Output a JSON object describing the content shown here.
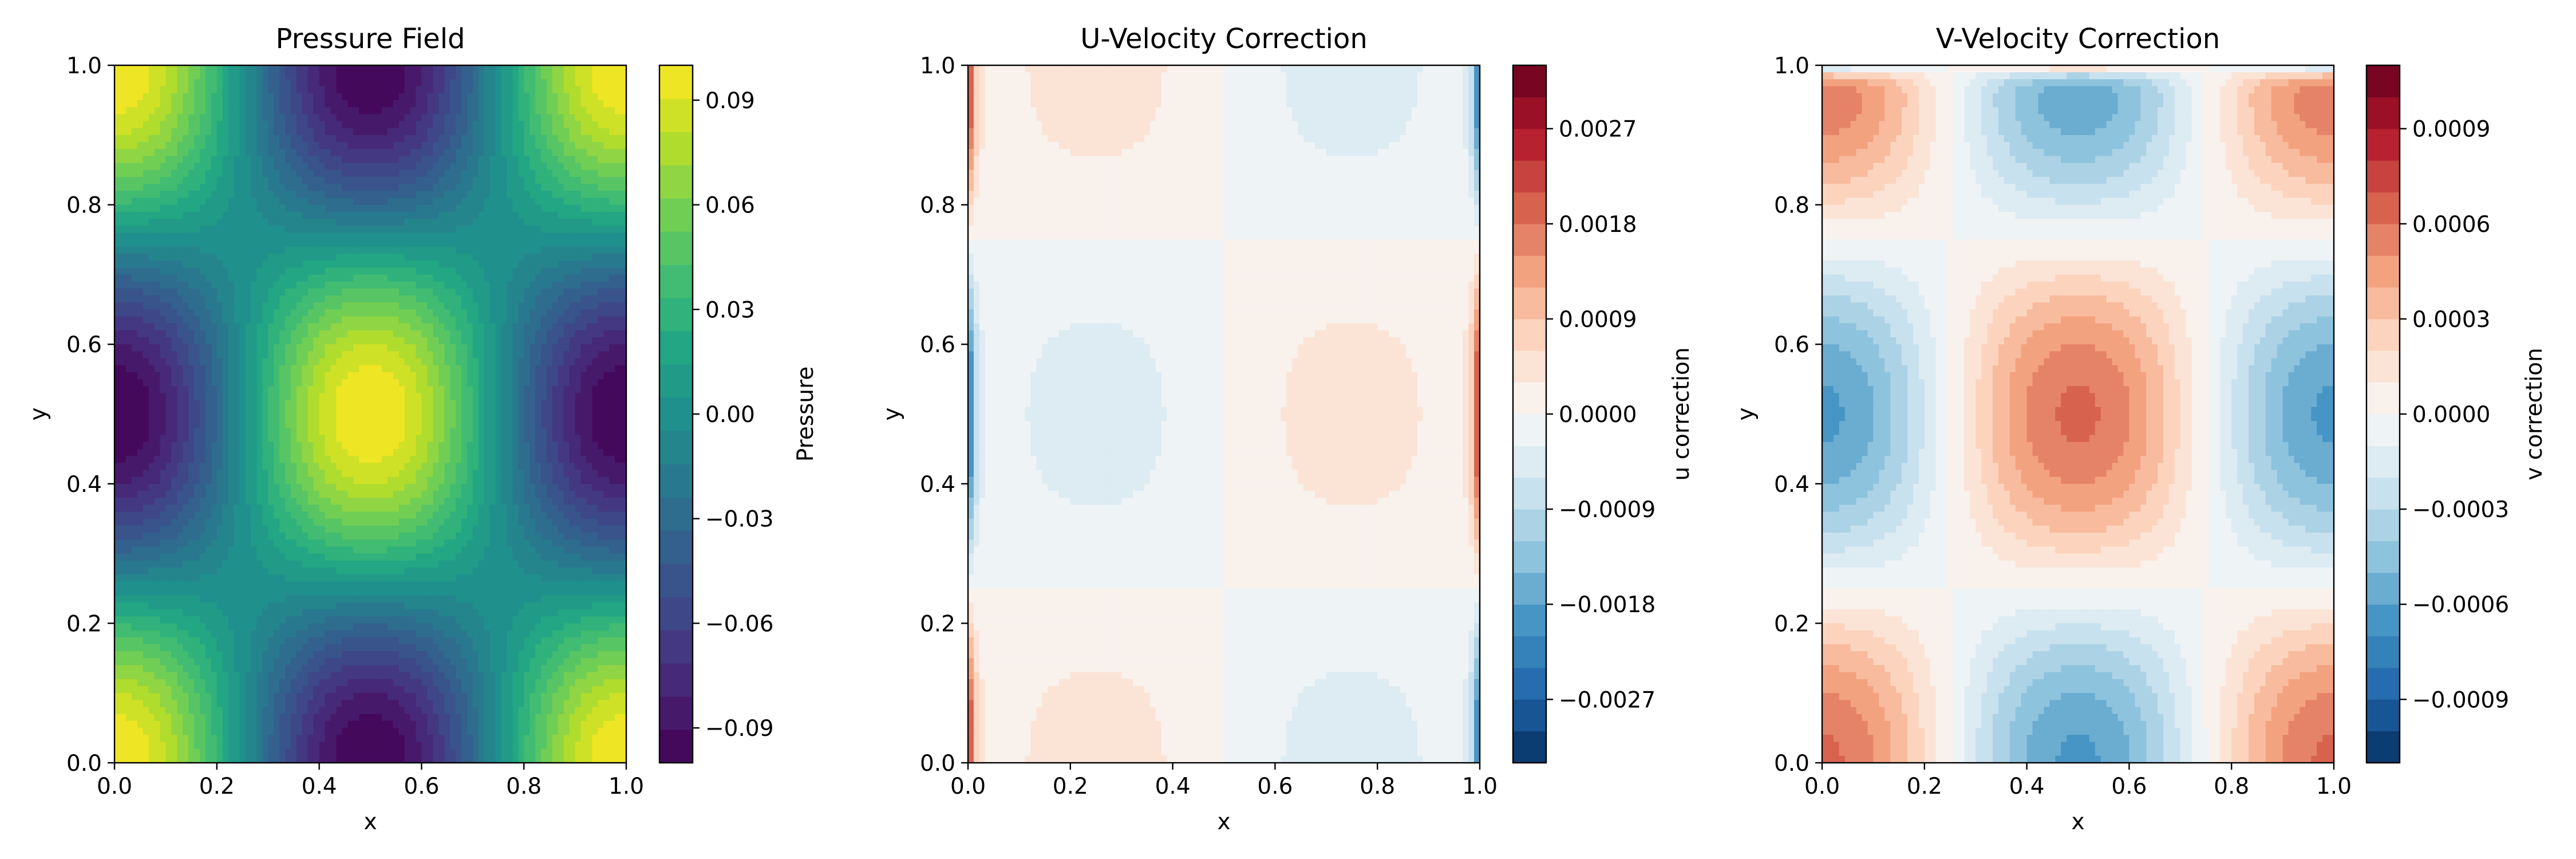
{
  "chart_data": [
    {
      "type": "heatmap",
      "title": "Pressure Field",
      "xlabel": "x",
      "ylabel": "y",
      "xlim": [
        0.0,
        1.0
      ],
      "ylim": [
        0.0,
        1.0
      ],
      "x_ticks": [
        "0.0",
        "0.2",
        "0.4",
        "0.6",
        "0.8",
        "1.0"
      ],
      "y_ticks": [
        "0.0",
        "0.2",
        "0.4",
        "0.6",
        "0.8",
        "1.0"
      ],
      "colormap": "viridis",
      "field": "p = 0.1 * cos(2*pi*x) * cos(2*pi*y)",
      "colorbar": {
        "label": "Pressure",
        "range": [
          -0.1,
          0.1
        ],
        "levels": 21,
        "ticks": [
          {
            "value": 0.09,
            "label": "0.09"
          },
          {
            "value": 0.06,
            "label": "0.06"
          },
          {
            "value": 0.03,
            "label": "0.03"
          },
          {
            "value": 0.0,
            "label": "0.00"
          },
          {
            "value": -0.03,
            "label": "−0.03"
          },
          {
            "value": -0.06,
            "label": "−0.06"
          },
          {
            "value": -0.09,
            "label": "−0.09"
          }
        ]
      }
    },
    {
      "type": "heatmap",
      "title": "U-Velocity Correction",
      "xlabel": "x",
      "ylabel": "y",
      "xlim": [
        0.0,
        1.0
      ],
      "ylim": [
        0.0,
        1.0
      ],
      "x_ticks": [
        "0.0",
        "0.2",
        "0.4",
        "0.6",
        "0.8",
        "1.0"
      ],
      "y_ticks": [
        "0.0",
        "0.2",
        "0.4",
        "0.6",
        "0.8",
        "1.0"
      ],
      "colormap": "RdBu_r",
      "field": "u' proportional to sin(2*pi*x) * cos(2*pi*y), with strong thin bands at x=0 and x=1",
      "colorbar": {
        "label": "u correction",
        "range": [
          -0.0033,
          0.0033
        ],
        "levels": 22,
        "ticks": [
          {
            "value": 0.0027,
            "label": "0.0027"
          },
          {
            "value": 0.0018,
            "label": "0.0018"
          },
          {
            "value": 0.0009,
            "label": "0.0009"
          },
          {
            "value": 0.0,
            "label": "0.0000"
          },
          {
            "value": -0.0009,
            "label": "−0.0009"
          },
          {
            "value": -0.0018,
            "label": "−0.0018"
          },
          {
            "value": -0.0027,
            "label": "−0.0027"
          }
        ]
      }
    },
    {
      "type": "heatmap",
      "title": "V-Velocity Correction",
      "xlabel": "x",
      "ylabel": "y",
      "xlim": [
        0.0,
        1.0
      ],
      "ylim": [
        0.0,
        1.0
      ],
      "x_ticks": [
        "0.0",
        "0.2",
        "0.4",
        "0.6",
        "0.8",
        "1.0"
      ],
      "y_ticks": [
        "0.0",
        "0.2",
        "0.4",
        "0.6",
        "0.8",
        "1.0"
      ],
      "colormap": "RdBu_r",
      "field": "v' proportional to -cos(2*pi*x) * sin(2*pi*y) inner pattern, with thin bands along y=0 and y=1",
      "colorbar": {
        "label": "v correction",
        "range": [
          -0.0011,
          0.0011
        ],
        "levels": 22,
        "ticks": [
          {
            "value": 0.0009,
            "label": "0.0009"
          },
          {
            "value": 0.0006,
            "label": "0.0006"
          },
          {
            "value": 0.0003,
            "label": "0.0003"
          },
          {
            "value": 0.0,
            "label": "0.0000"
          },
          {
            "value": -0.0003,
            "label": "−0.0003"
          },
          {
            "value": -0.0006,
            "label": "−0.0006"
          },
          {
            "value": -0.0009,
            "label": "−0.0009"
          }
        ]
      }
    }
  ]
}
